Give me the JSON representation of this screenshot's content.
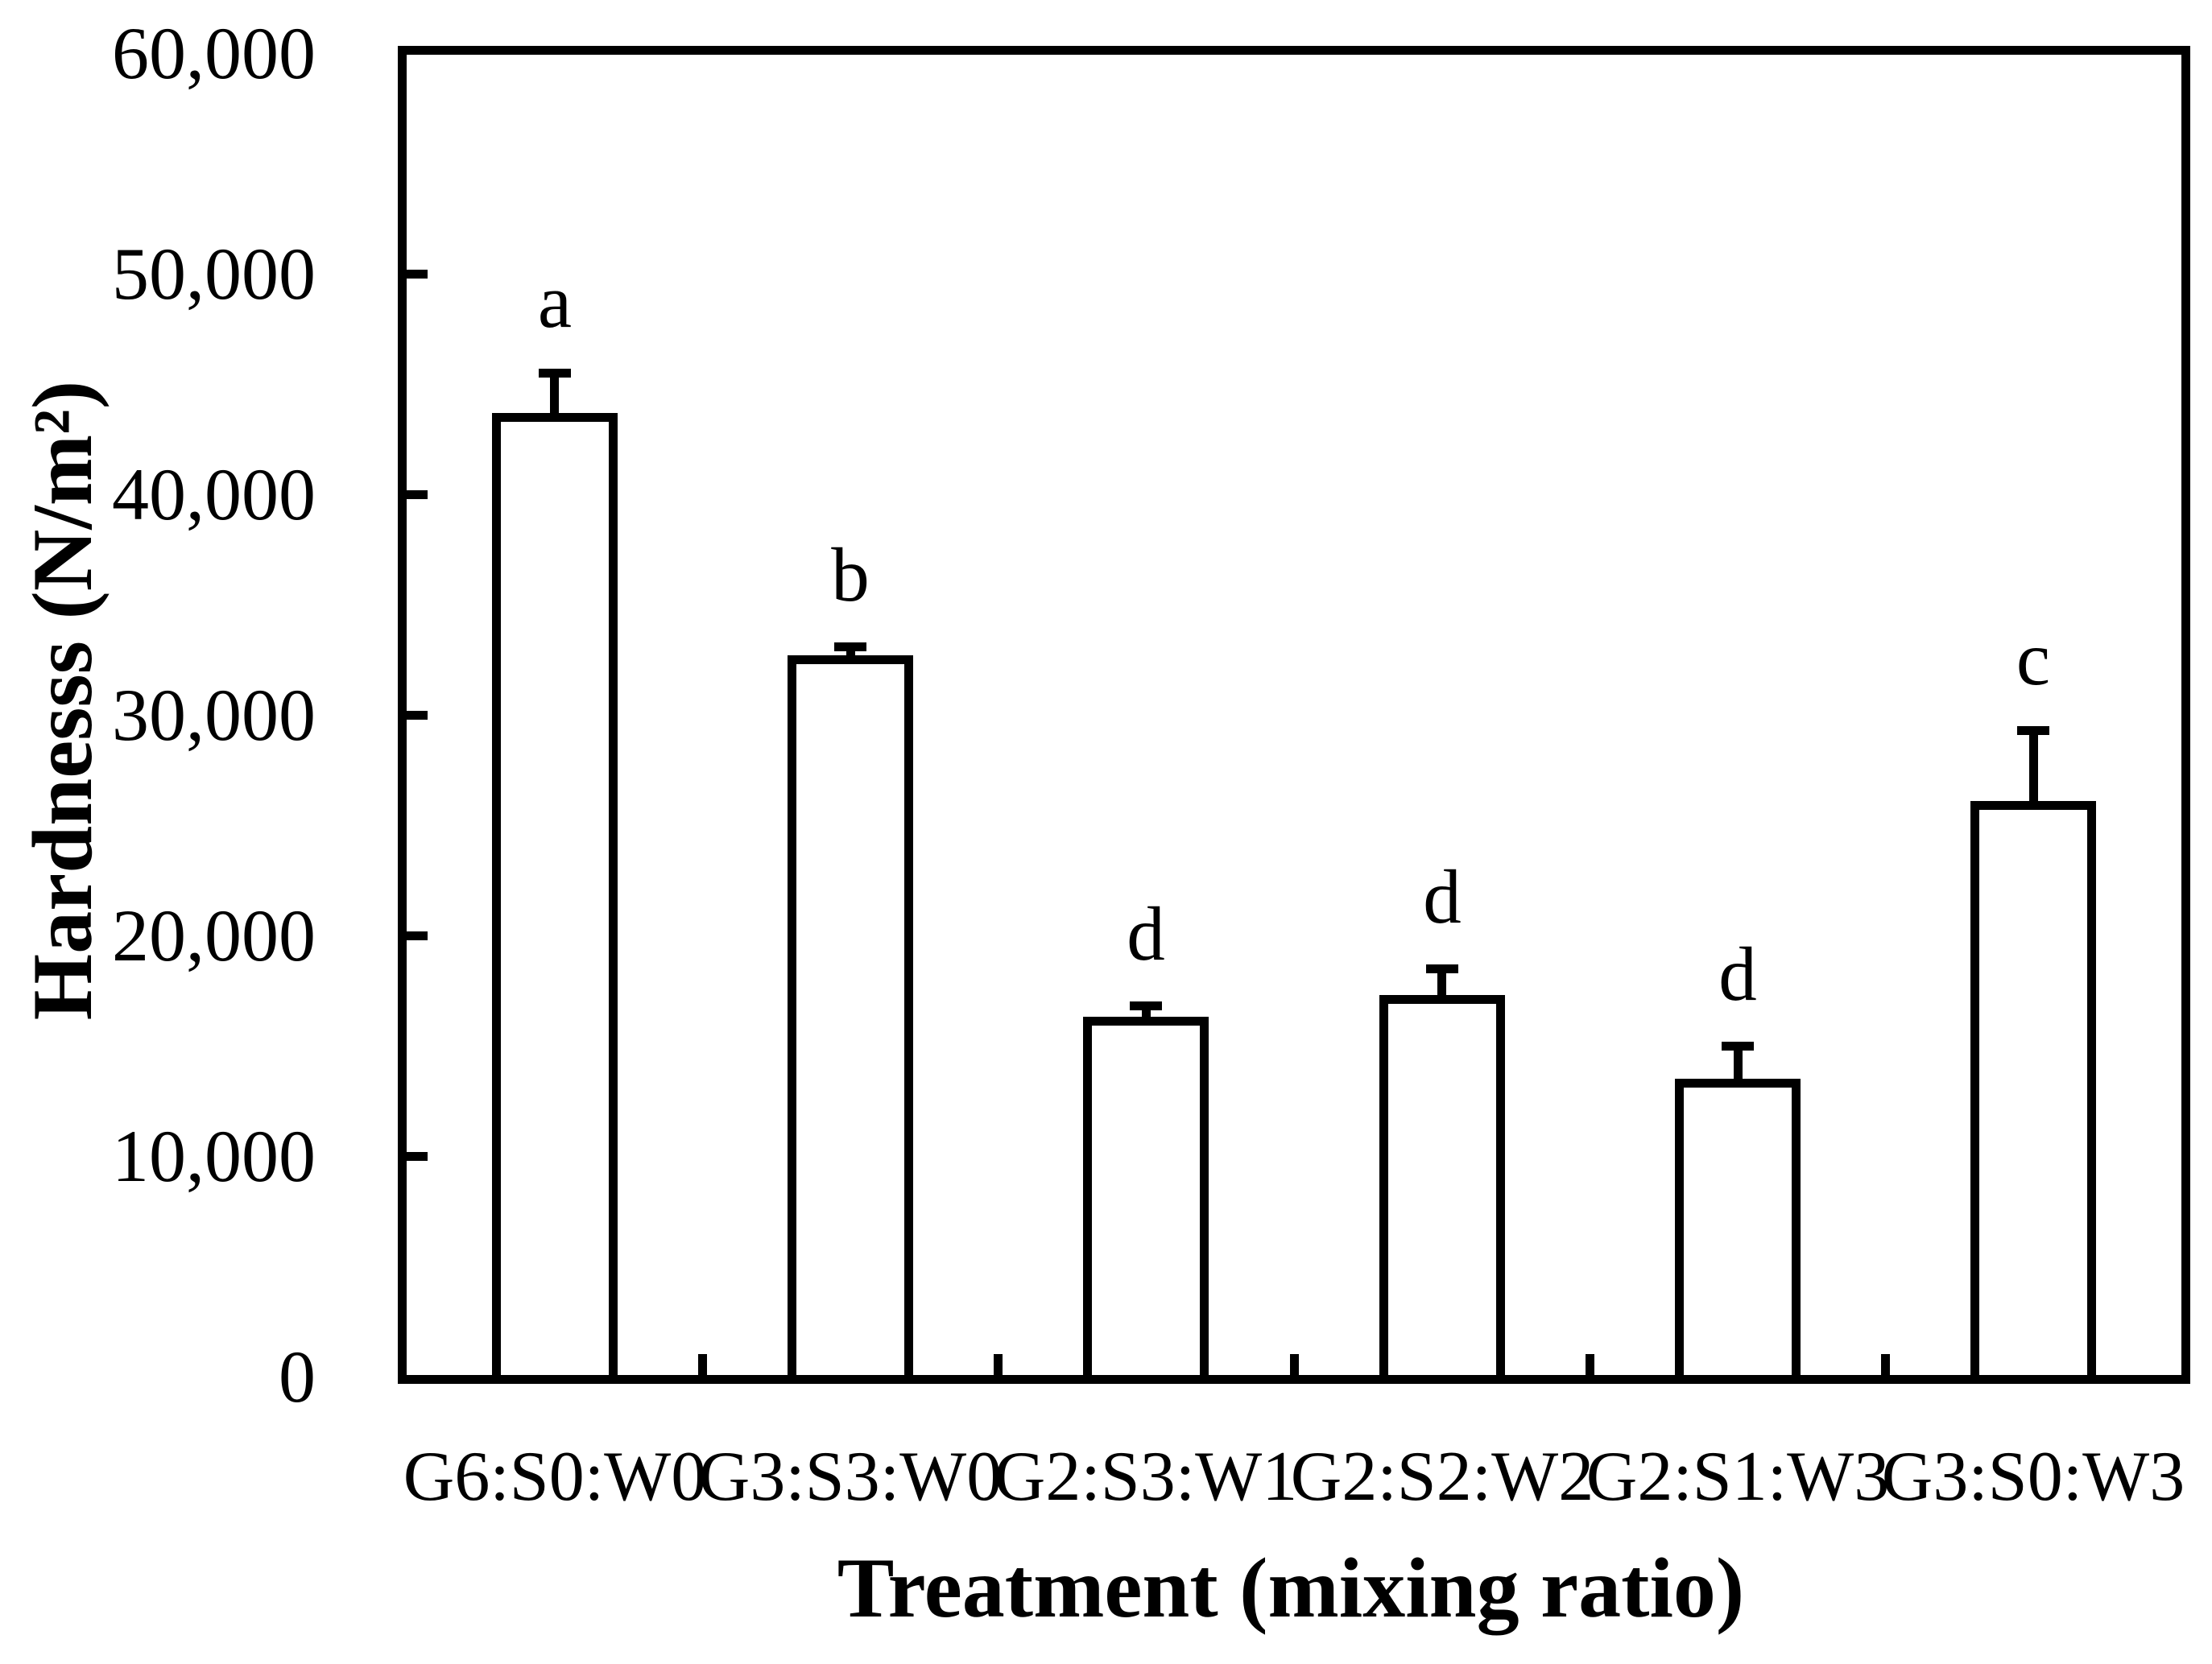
{
  "chart_data": {
    "type": "bar",
    "title": "",
    "xlabel": "Treatment (mixing ratio)",
    "ylabel": "Hardnesss (N/m²)",
    "categories": [
      "G6:S0:W0",
      "G3:S3:W0",
      "G2:S3:W1",
      "G2:S2:W2",
      "G2:S1:W3",
      "G3:S0:W3"
    ],
    "values": [
      43700,
      32700,
      16300,
      17300,
      13500,
      26100
    ],
    "errors_upper": [
      2000,
      600,
      700,
      1400,
      1700,
      3400
    ],
    "sig_letters": [
      "a",
      "b",
      "d",
      "d",
      "d",
      "c"
    ],
    "ylim": [
      0,
      60000
    ],
    "ytick_step": 10000,
    "ytick_labels": [
      "0",
      "10,000",
      "20,000",
      "30,000",
      "40,000",
      "50,000",
      "60,000"
    ],
    "grid": false,
    "legend": "none",
    "bar_fill": "#ffffff",
    "bar_border": "#000000",
    "axis_color": "#000000"
  }
}
